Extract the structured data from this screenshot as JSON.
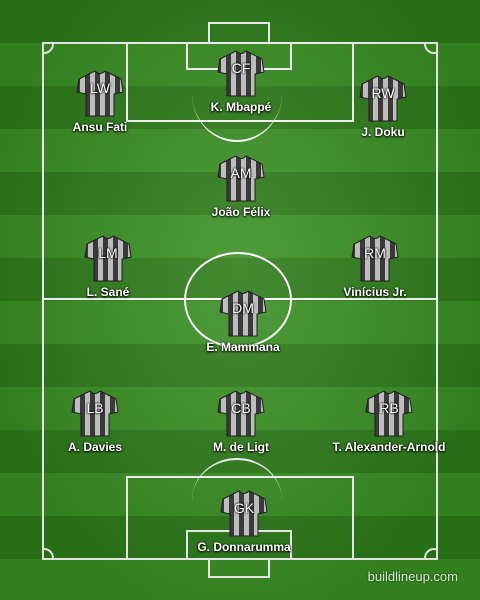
{
  "players": {
    "cf": {
      "position": "CF",
      "name": "K. Mbappé"
    },
    "lw": {
      "position": "LW",
      "name": "Ansu Fati"
    },
    "rw": {
      "position": "RW",
      "name": "J. Doku"
    },
    "am": {
      "position": "AM",
      "name": "João Félix"
    },
    "lm": {
      "position": "LM",
      "name": "L. Sané"
    },
    "rm": {
      "position": "RM",
      "name": "Vinícius Jr."
    },
    "dm": {
      "position": "DM",
      "name": "E. Mammana"
    },
    "lb": {
      "position": "LB",
      "name": "A. Davies"
    },
    "cb": {
      "position": "CB",
      "name": "M. de Ligt"
    },
    "rb": {
      "position": "RB",
      "name": "T. Alexander-Arnold"
    },
    "gk": {
      "position": "GK",
      "name": "G. Donnarumma"
    }
  },
  "watermark": "buildlineup.com",
  "colors": {
    "pitch_dark": "#2e7d1a",
    "pitch_light": "#3a9124",
    "shirt_dark": "#3a3a3a",
    "shirt_light": "#bdbdbd"
  },
  "icons": {
    "player": "striped-jersey-icon"
  }
}
